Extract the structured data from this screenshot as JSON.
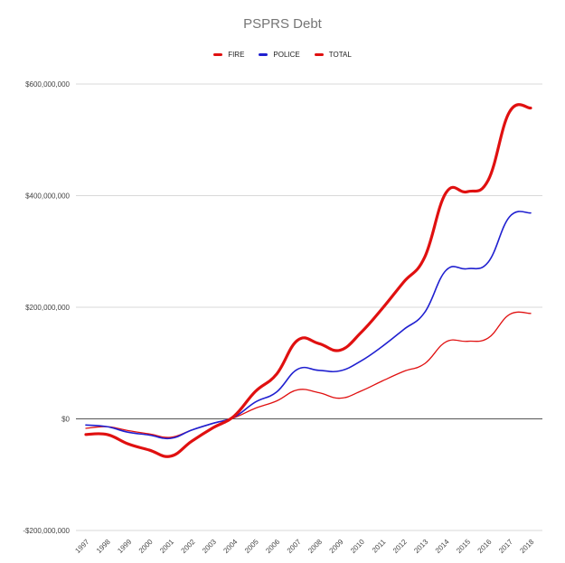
{
  "chart_data": {
    "type": "line",
    "title": "PSPRS Debt",
    "xlabel": "",
    "ylabel": "",
    "categories": [
      "1997",
      "1998",
      "1999",
      "2000",
      "2001",
      "2002",
      "2003",
      "2004",
      "2005",
      "2006",
      "2007",
      "2008",
      "2009",
      "2010",
      "2011",
      "2012",
      "2013",
      "2014",
      "2015",
      "2016",
      "2017",
      "2018"
    ],
    "ylim": [
      -200000000,
      600000000
    ],
    "yticks": [
      {
        "value": 600000000,
        "label": "$600,000,000"
      },
      {
        "value": 400000000,
        "label": "$400,000,000"
      },
      {
        "value": 200000000,
        "label": "$200,000,000"
      },
      {
        "value": 0,
        "label": "$0"
      },
      {
        "value": -200000000,
        "label": "-$200,000,000"
      }
    ],
    "legend_position": "top",
    "grid": true,
    "series": [
      {
        "name": "FIRE",
        "color": "#e01010",
        "width": 1.3,
        "values": [
          -17000000,
          -14000000,
          -21000000,
          -27000000,
          -33000000,
          -20000000,
          -8000000,
          2000000,
          19000000,
          32000000,
          52000000,
          47000000,
          37000000,
          50000000,
          68000000,
          85000000,
          99000000,
          138000000,
          139000000,
          145000000,
          187000000,
          189000000
        ]
      },
      {
        "name": "POLICE",
        "color": "#2020d0",
        "width": 1.6,
        "values": [
          -11000000,
          -14000000,
          -24000000,
          -29000000,
          -35000000,
          -20000000,
          -8000000,
          3000000,
          30000000,
          48000000,
          89000000,
          87000000,
          86000000,
          104000000,
          130000000,
          160000000,
          191000000,
          266000000,
          269000000,
          281000000,
          362000000,
          369000000
        ]
      },
      {
        "name": "TOTAL",
        "color": "#e01010",
        "width": 3.2,
        "values": [
          -28000000,
          -28000000,
          -45000000,
          -56000000,
          -67000000,
          -40000000,
          -16000000,
          5000000,
          49000000,
          80000000,
          141000000,
          135000000,
          123000000,
          155000000,
          198000000,
          245000000,
          290000000,
          405000000,
          407000000,
          428000000,
          550000000,
          557000000
        ]
      }
    ]
  }
}
